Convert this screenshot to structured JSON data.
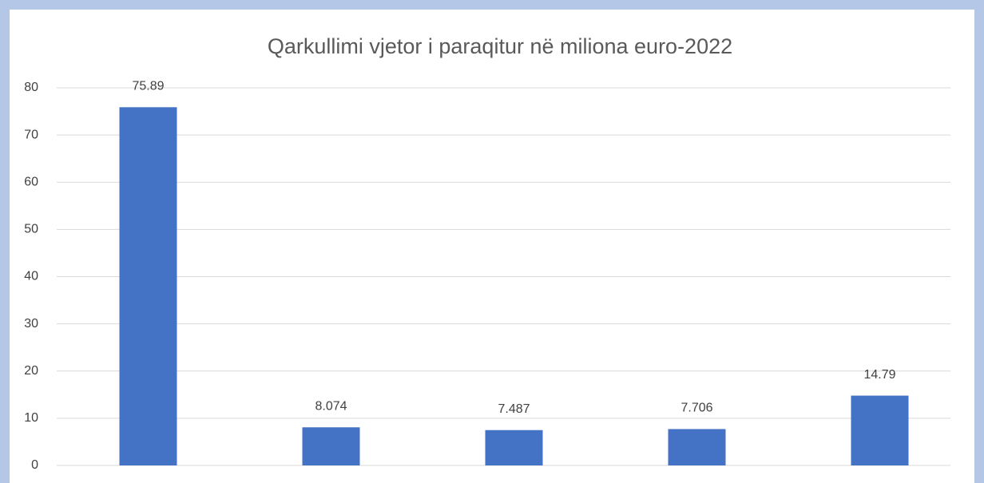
{
  "chart_data": {
    "type": "bar",
    "title": "Qarkullimi vjetor i paraqitur në miliona euro-2022",
    "categories": [
      null,
      null,
      null,
      null,
      null
    ],
    "values": [
      75.89,
      8.074,
      7.487,
      7.706,
      14.79
    ],
    "color": "#4472c4",
    "ylim": [
      0,
      80
    ],
    "yticks": [
      0,
      10,
      20,
      30,
      40,
      50,
      60,
      70,
      80
    ],
    "grid": true
  }
}
